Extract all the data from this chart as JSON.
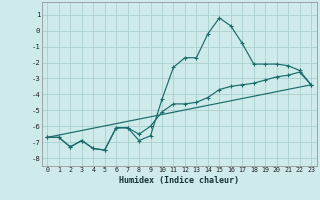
{
  "xlabel": "Humidex (Indice chaleur)",
  "xlim": [
    -0.5,
    23.5
  ],
  "ylim": [
    -8.5,
    1.8
  ],
  "yticks": [
    1,
    0,
    -1,
    -2,
    -3,
    -4,
    -5,
    -6,
    -7,
    -8
  ],
  "xticks": [
    0,
    1,
    2,
    3,
    4,
    5,
    6,
    7,
    8,
    9,
    10,
    11,
    12,
    13,
    14,
    15,
    16,
    17,
    18,
    19,
    20,
    21,
    22,
    23
  ],
  "background_color": "#ceeaea",
  "grid_color": "#aacece",
  "line_color": "#1a6b6b",
  "line1_x": [
    0,
    1,
    2,
    3,
    4,
    5,
    6,
    7,
    8,
    9,
    10,
    11,
    12,
    13,
    14,
    15,
    16,
    17,
    18,
    19,
    20,
    21,
    22,
    23
  ],
  "line1_y": [
    -6.7,
    -6.7,
    -7.3,
    -6.9,
    -7.4,
    -7.5,
    -6.1,
    -6.1,
    -6.9,
    -6.6,
    -4.3,
    -2.3,
    -1.7,
    -1.7,
    -0.2,
    0.8,
    0.3,
    -0.8,
    -2.1,
    -2.1,
    -2.1,
    -2.2,
    -2.5,
    -3.4
  ],
  "line2_x": [
    0,
    1,
    2,
    3,
    4,
    5,
    6,
    7,
    8,
    9,
    10,
    11,
    12,
    13,
    14,
    15,
    16,
    17,
    18,
    19,
    20,
    21,
    22,
    23
  ],
  "line2_y": [
    -6.7,
    -6.7,
    -7.3,
    -6.9,
    -7.4,
    -7.5,
    -6.1,
    -6.1,
    -6.5,
    -6.0,
    -5.1,
    -4.6,
    -4.6,
    -4.5,
    -4.2,
    -3.7,
    -3.5,
    -3.4,
    -3.3,
    -3.1,
    -2.9,
    -2.8,
    -2.6,
    -3.4
  ],
  "line3_x": [
    0,
    23
  ],
  "line3_y": [
    -6.7,
    -3.4
  ]
}
